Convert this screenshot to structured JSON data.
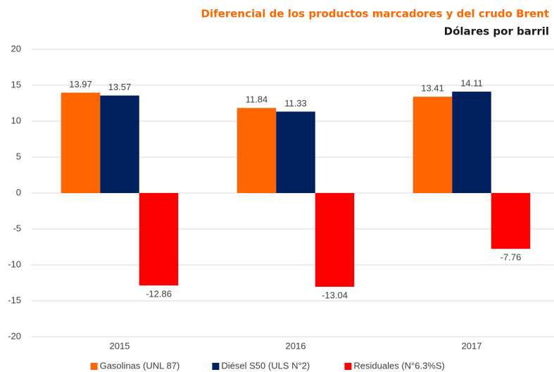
{
  "chart_data": {
    "type": "bar",
    "title": "Diferencial de los productos marcadores y del crudo Brent",
    "subtitle": "Dólares por barril",
    "categories": [
      "2015",
      "2016",
      "2017"
    ],
    "series": [
      {
        "name": "Gasolinas (UNL 87)",
        "color": "#ff6600",
        "values": [
          13.97,
          11.84,
          13.41
        ]
      },
      {
        "name": "Diésel S50 (ULS N°2)",
        "color": "#002060",
        "values": [
          13.57,
          11.33,
          14.11
        ]
      },
      {
        "name": "Residuales (N°6.3%S)",
        "color": "#ff0000",
        "values": [
          -12.86,
          -13.04,
          -7.76
        ]
      }
    ],
    "ylim": [
      -20,
      20
    ],
    "yticks": [
      -20,
      -15,
      -10,
      -5,
      0,
      5,
      10,
      15,
      20
    ],
    "grid": true,
    "legend": "bottom"
  }
}
